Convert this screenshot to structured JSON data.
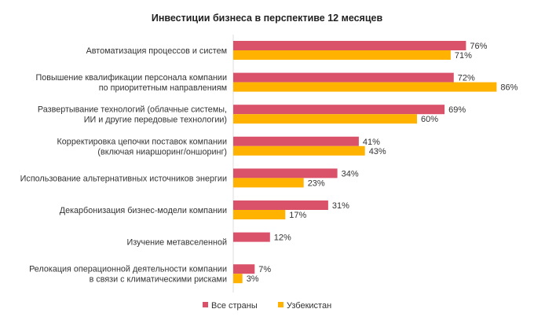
{
  "chart_data": {
    "type": "bar",
    "orientation": "horizontal",
    "title": "Инвестиции бизнеса в перспективе 12 месяцев",
    "xlabel": "",
    "ylabel": "",
    "xlim": [
      0,
      100
    ],
    "grid": false,
    "legend_position": "bottom-center",
    "categories": [
      [
        "Автоматизация процессов и систем"
      ],
      [
        "Повышение квалификации персонала компании",
        "по приоритетным направлениям"
      ],
      [
        "Развертывание технологий (облачные системы,",
        "ИИ и другие передовые технологии)"
      ],
      [
        "Корректировка цепочки поставок компании",
        "(включая ниаршоринг/оншоринг)"
      ],
      [
        "Использование альтернативных источников энергии"
      ],
      [
        "Декарбонизация бизнес-модели компании"
      ],
      [
        "Изучение метавселенной"
      ],
      [
        "Релокация операционной деятельности компании",
        "в связи с климатическими рисками"
      ]
    ],
    "series": [
      {
        "name": "Все страны",
        "color": "#DA526A",
        "values": [
          76,
          72,
          69,
          41,
          34,
          31,
          12,
          7
        ]
      },
      {
        "name": "Узбекистан",
        "color": "#FFB300",
        "values": [
          71,
          86,
          60,
          43,
          23,
          17,
          null,
          3
        ]
      }
    ],
    "value_suffix": "%"
  }
}
